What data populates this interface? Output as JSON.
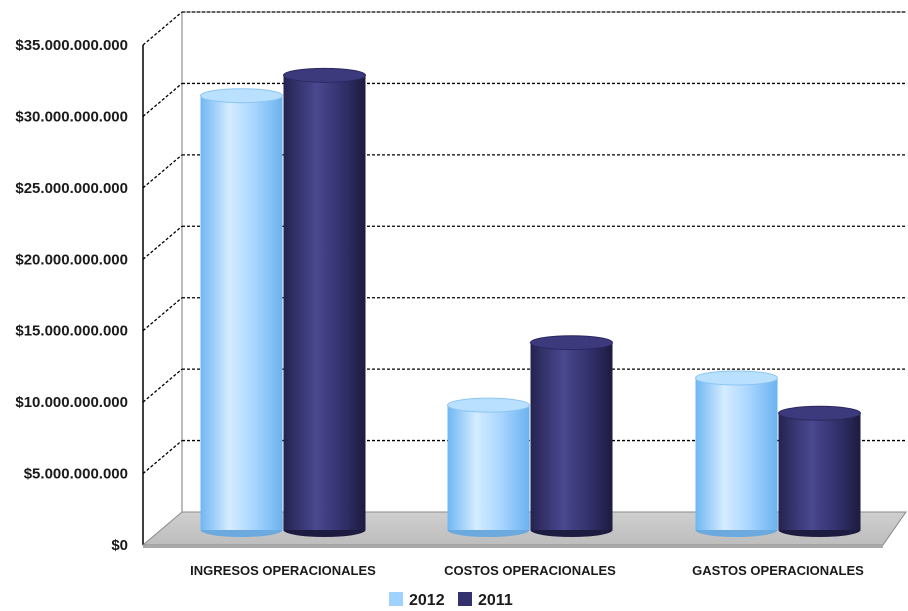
{
  "chart_data": {
    "type": "bar",
    "title": "",
    "xlabel": "",
    "ylabel": "",
    "categories": [
      "INGRESOS OPERACIONALES",
      "COSTOS OPERACIONALES",
      "GASTOS OPERACIONALES"
    ],
    "series": [
      {
        "name": "2012",
        "color": "#9fd3ff",
        "values": [
          32000000000,
          9200000000,
          11200000000
        ]
      },
      {
        "name": "2011",
        "color": "#34326e",
        "values": [
          33500000000,
          13800000000,
          8600000000
        ]
      }
    ],
    "ylim": [
      0,
      35000000000
    ],
    "yticks": [
      "$0",
      "$5.000.000.000",
      "$10.000.000.000",
      "$15.000.000.000",
      "$20.000.000.000",
      "$25.000.000.000",
      "$30.000.000.000",
      "$35.000.000.000"
    ],
    "grid": true,
    "legend_position": "bottom-center",
    "style": "3d-cylinder"
  }
}
